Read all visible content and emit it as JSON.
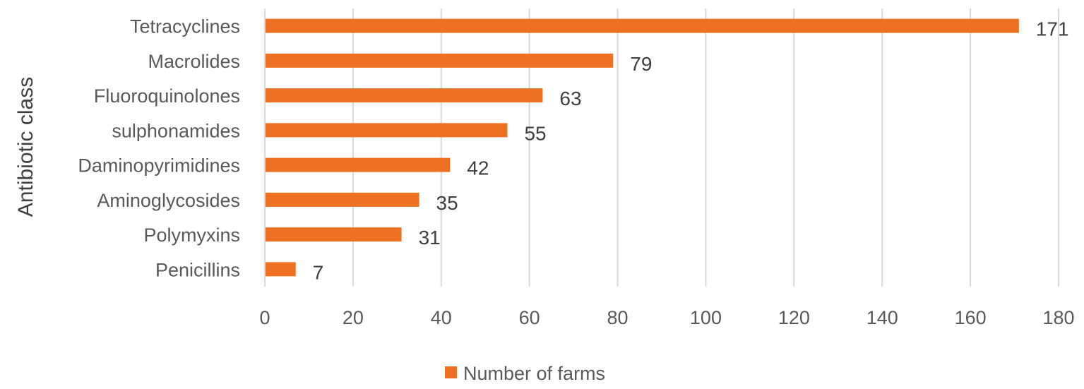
{
  "chart_data": {
    "type": "bar",
    "orientation": "horizontal",
    "categories": [
      "Tetracyclines",
      "Macrolides",
      "Fluoroquinolones",
      "sulphonamides",
      "Daminopyrimidines",
      "Aminoglycosides",
      "Polymyxins",
      "Penicillins"
    ],
    "series": [
      {
        "name": "Number of farms",
        "values": [
          171,
          79,
          63,
          55,
          42,
          35,
          31,
          7
        ]
      }
    ],
    "title": "",
    "xlabel": "",
    "ylabel": "Antibiotic class",
    "xlim": [
      0,
      180
    ],
    "xticks": [
      0,
      20,
      40,
      60,
      80,
      100,
      120,
      140,
      160,
      180
    ],
    "grid": "vertical",
    "legend_position": "bottom",
    "data_labels": true,
    "bar_color": "#ED7023",
    "grid_color": "#D9D9D9"
  }
}
